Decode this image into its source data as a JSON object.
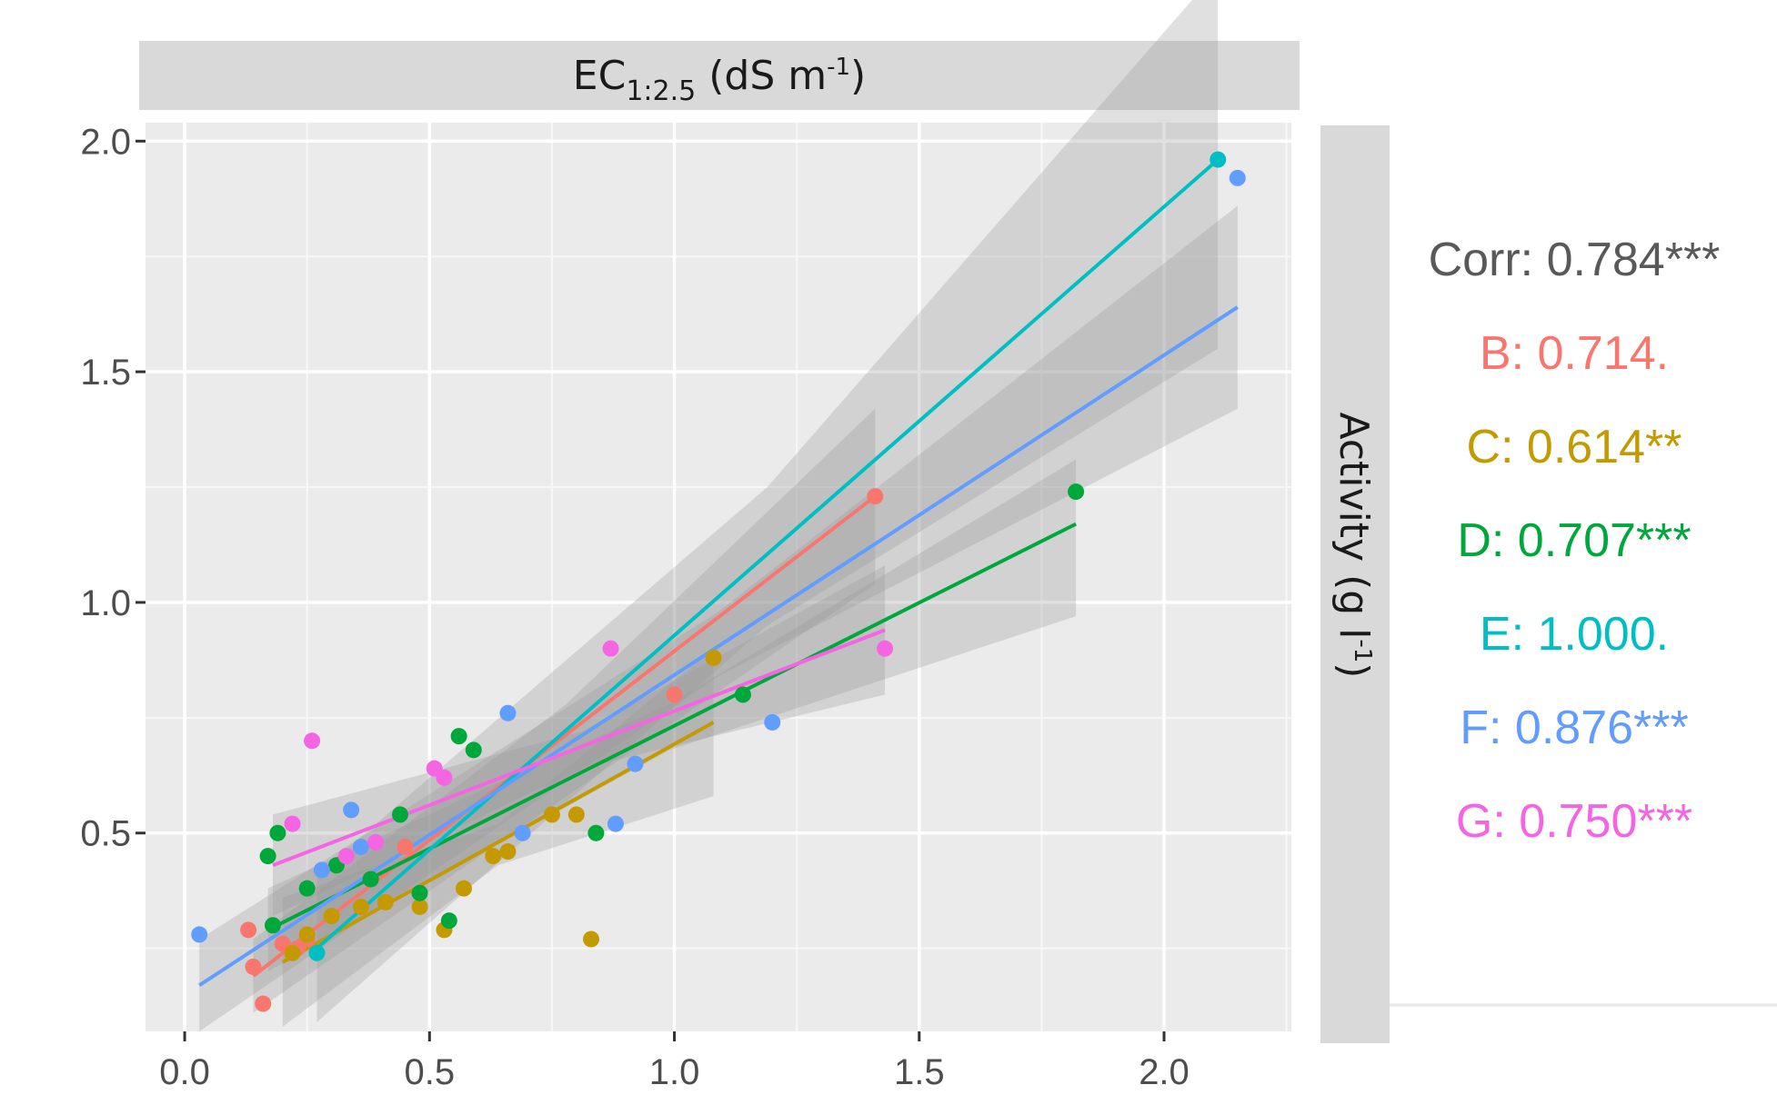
{
  "chart_data": {
    "type": "scatter",
    "strip_top": {
      "main": "EC",
      "sub": "1:2.5",
      "unit_open": " (dS m",
      "sup": "-1",
      "unit_close": ")"
    },
    "strip_right": {
      "main": "Activity (g l",
      "sup": "-1",
      "close": ")"
    },
    "xlim": [
      -0.08,
      2.26
    ],
    "ylim": [
      0.07,
      2.04
    ],
    "x_ticks": [
      0.0,
      0.5,
      1.0,
      1.5,
      2.0
    ],
    "x_tick_labels": [
      "0.0",
      "0.5",
      "1.0",
      "1.5",
      "2.0"
    ],
    "y_ticks": [
      0.5,
      1.0,
      1.5,
      2.0
    ],
    "y_tick_labels": [
      "0.5",
      "1.0",
      "1.5",
      "2.0"
    ],
    "grid": true,
    "correlations": {
      "overall": {
        "text": "Corr: 0.784***",
        "color": "#595959"
      },
      "groups": [
        {
          "group": "B",
          "text": "B: 0.714.",
          "color": "#F8766D"
        },
        {
          "group": "C",
          "text": "C: 0.614**",
          "color": "#C49A00"
        },
        {
          "group": "D",
          "text": "D: 0.707***",
          "color": "#00A83B"
        },
        {
          "group": "E",
          "text": "E: 1.000.",
          "color": "#00BFC4"
        },
        {
          "group": "F",
          "text": "F: 0.876***",
          "color": "#619CFF"
        },
        {
          "group": "G",
          "text": "G: 0.750***",
          "color": "#F564E3"
        }
      ]
    },
    "series": [
      {
        "group": "B",
        "color": "#F8766D",
        "points": [
          [
            0.13,
            0.29
          ],
          [
            0.14,
            0.21
          ],
          [
            0.16,
            0.13
          ],
          [
            0.2,
            0.26
          ],
          [
            0.23,
            0.25
          ],
          [
            0.25,
            0.27
          ],
          [
            0.45,
            0.47
          ],
          [
            1.0,
            0.8
          ],
          [
            1.41,
            1.23
          ]
        ],
        "fit": [
          0.14,
          0.19,
          1.41,
          1.23
        ],
        "band": [
          [
            0.14,
            0.11,
            0.27
          ],
          [
            0.78,
            0.58,
            0.78
          ],
          [
            1.41,
            1.04,
            1.42
          ]
        ]
      },
      {
        "group": "C",
        "color": "#C49A00",
        "points": [
          [
            0.22,
            0.24
          ],
          [
            0.25,
            0.28
          ],
          [
            0.3,
            0.32
          ],
          [
            0.36,
            0.34
          ],
          [
            0.41,
            0.35
          ],
          [
            0.48,
            0.34
          ],
          [
            0.53,
            0.29
          ],
          [
            0.57,
            0.38
          ],
          [
            0.63,
            0.45
          ],
          [
            0.66,
            0.46
          ],
          [
            0.75,
            0.54
          ],
          [
            0.8,
            0.54
          ],
          [
            0.83,
            0.27
          ],
          [
            1.08,
            0.88
          ]
        ],
        "fit": [
          0.2,
          0.22,
          1.08,
          0.74
        ],
        "band": [
          [
            0.2,
            0.08,
            0.36
          ],
          [
            0.64,
            0.43,
            0.52
          ],
          [
            1.08,
            0.58,
            0.9
          ]
        ]
      },
      {
        "group": "D",
        "color": "#00A83B",
        "points": [
          [
            0.17,
            0.45
          ],
          [
            0.19,
            0.5
          ],
          [
            0.18,
            0.3
          ],
          [
            0.25,
            0.38
          ],
          [
            0.31,
            0.43
          ],
          [
            0.38,
            0.4
          ],
          [
            0.44,
            0.54
          ],
          [
            0.48,
            0.37
          ],
          [
            0.54,
            0.31
          ],
          [
            0.56,
            0.71
          ],
          [
            0.59,
            0.68
          ],
          [
            0.84,
            0.5
          ],
          [
            1.14,
            0.8
          ],
          [
            1.82,
            1.24
          ]
        ],
        "fit": [
          0.17,
          0.29,
          1.82,
          1.17
        ],
        "band": [
          [
            0.17,
            0.2,
            0.38
          ],
          [
            0.99,
            0.68,
            0.78
          ],
          [
            1.82,
            0.97,
            1.31
          ]
        ]
      },
      {
        "group": "E",
        "color": "#00BFC4",
        "points": [
          [
            0.27,
            0.24
          ],
          [
            2.11,
            1.96
          ]
        ],
        "fit": [
          0.27,
          0.25,
          2.11,
          1.96
        ],
        "band": [
          [
            0.27,
            0.09,
            0.41
          ],
          [
            1.19,
            0.95,
            1.25
          ],
          [
            2.11,
            1.55,
            2.37
          ]
        ]
      },
      {
        "group": "F",
        "color": "#619CFF",
        "points": [
          [
            0.03,
            0.28
          ],
          [
            0.28,
            0.42
          ],
          [
            0.34,
            0.55
          ],
          [
            0.36,
            0.47
          ],
          [
            0.66,
            0.76
          ],
          [
            0.69,
            0.5
          ],
          [
            0.88,
            0.52
          ],
          [
            0.92,
            0.65
          ],
          [
            1.2,
            0.74
          ],
          [
            2.15,
            1.92
          ]
        ],
        "fit": [
          0.03,
          0.17,
          2.15,
          1.64
        ],
        "band": [
          [
            0.03,
            0.07,
            0.27
          ],
          [
            1.09,
            0.84,
            0.98
          ],
          [
            2.15,
            1.42,
            1.86
          ]
        ]
      },
      {
        "group": "G",
        "color": "#F564E3",
        "points": [
          [
            0.22,
            0.52
          ],
          [
            0.26,
            0.7
          ],
          [
            0.33,
            0.45
          ],
          [
            0.39,
            0.48
          ],
          [
            0.51,
            0.64
          ],
          [
            0.53,
            0.62
          ],
          [
            0.87,
            0.9
          ],
          [
            1.43,
            0.9
          ]
        ],
        "fit": [
          0.18,
          0.43,
          1.43,
          0.94
        ],
        "band": [
          [
            0.18,
            0.32,
            0.54
          ],
          [
            0.81,
            0.64,
            0.72
          ],
          [
            1.43,
            0.8,
            1.08
          ]
        ]
      }
    ]
  }
}
